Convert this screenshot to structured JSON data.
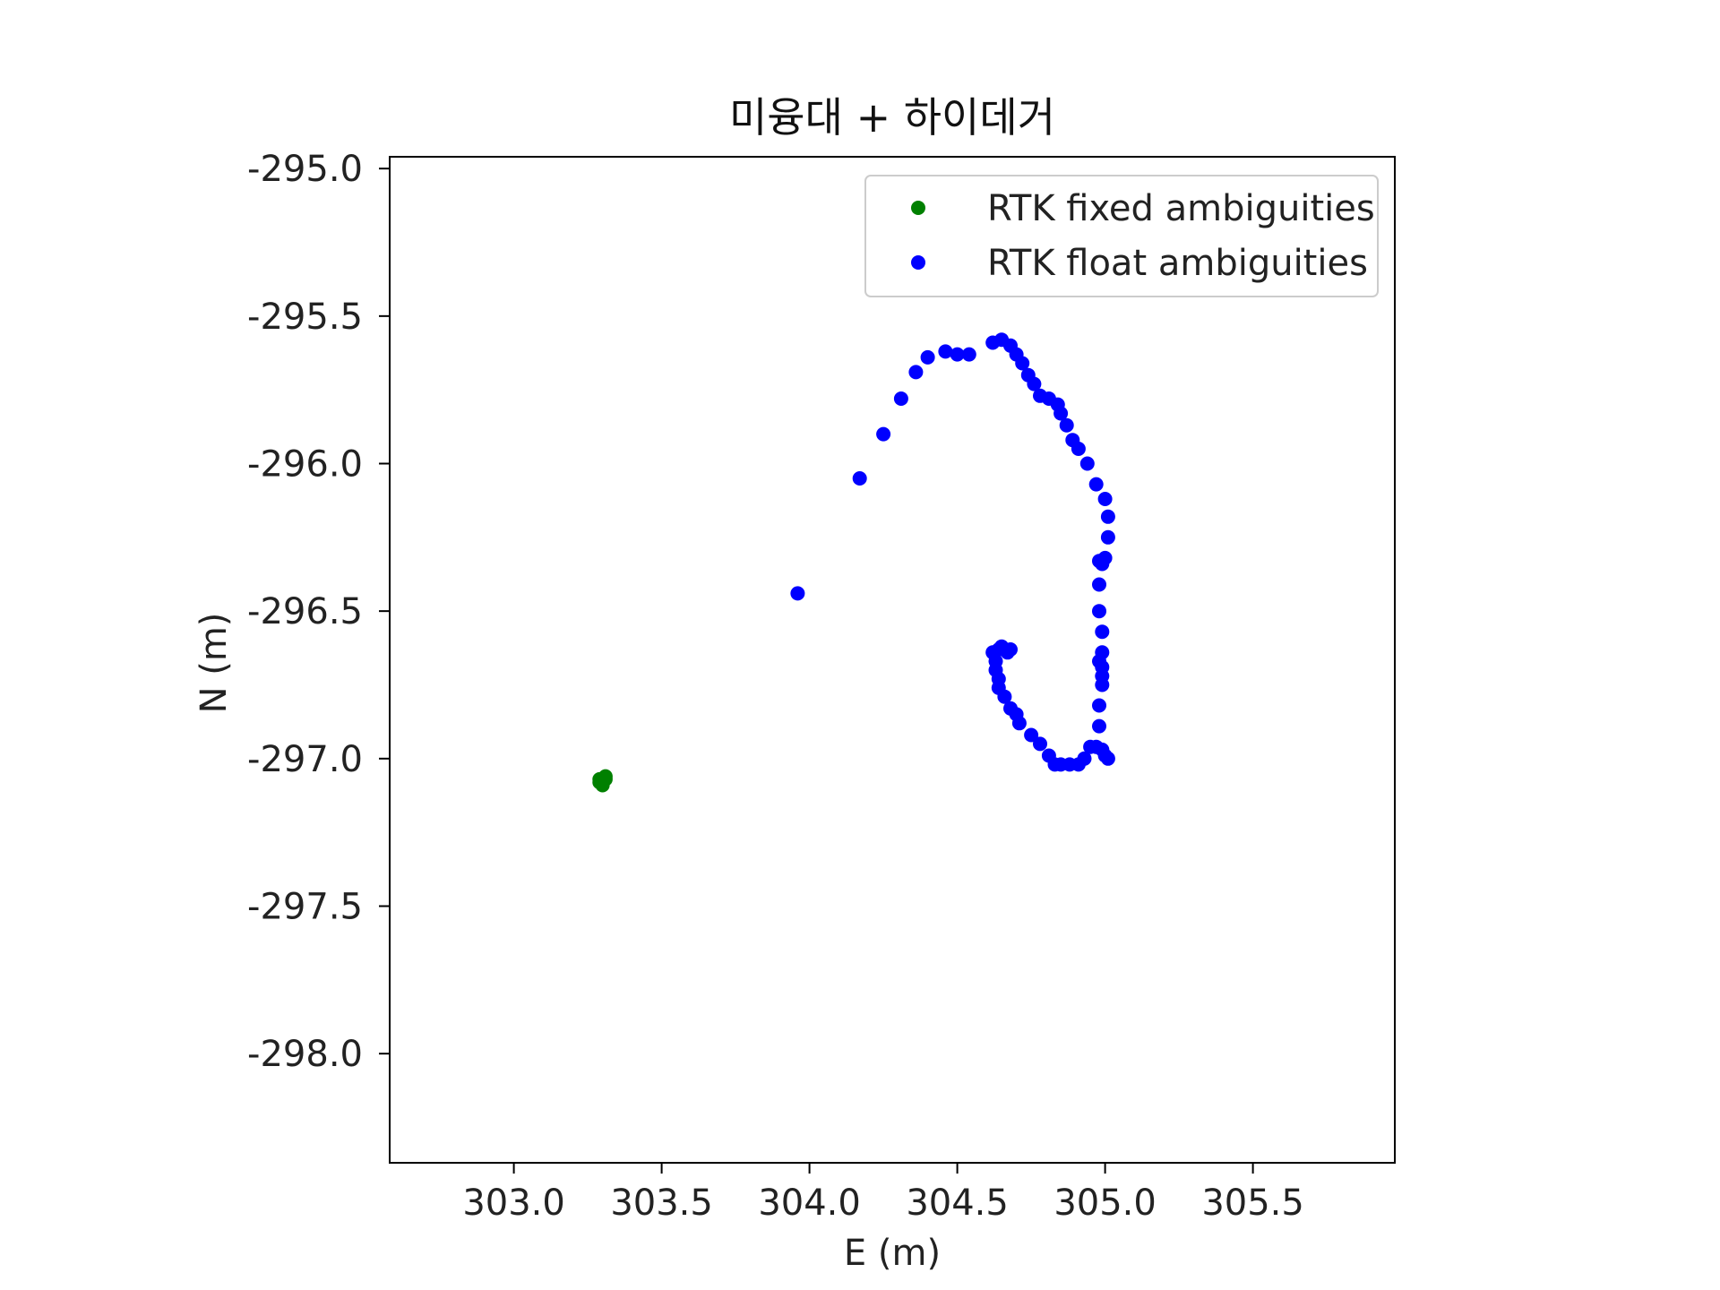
{
  "chart_data": {
    "type": "scatter",
    "title": "미융대 + 하이데거",
    "xlabel": "E (m)",
    "ylabel": "N (m)",
    "xlim": [
      302.58,
      305.98
    ],
    "ylim": [
      -298.37,
      -294.96
    ],
    "x_ticks": [
      "303.0",
      "303.5",
      "304.0",
      "304.5",
      "305.0",
      "305.5"
    ],
    "y_ticks": [
      "-295.0",
      "-295.5",
      "-296.0",
      "-296.5",
      "-297.0",
      "-297.5",
      "-298.0"
    ],
    "grid": false,
    "legend_position": "top-right",
    "series": [
      {
        "name": "RTK fixed ambiguities",
        "color": "#008000",
        "points": [
          [
            303.31,
            -297.06
          ],
          [
            303.3,
            -297.07
          ],
          [
            303.3,
            -297.08
          ],
          [
            303.29,
            -297.08
          ],
          [
            303.3,
            -297.09
          ],
          [
            303.31,
            -297.07
          ],
          [
            303.29,
            -297.07
          ]
        ]
      },
      {
        "name": "RTK float ambiguities",
        "color": "#0000ff",
        "points": [
          [
            303.96,
            -296.44
          ],
          [
            304.17,
            -296.05
          ],
          [
            304.25,
            -295.9
          ],
          [
            304.31,
            -295.78
          ],
          [
            304.36,
            -295.69
          ],
          [
            304.4,
            -295.64
          ],
          [
            304.46,
            -295.62
          ],
          [
            304.5,
            -295.63
          ],
          [
            304.54,
            -295.63
          ],
          [
            304.62,
            -295.59
          ],
          [
            304.65,
            -295.58
          ],
          [
            304.68,
            -295.6
          ],
          [
            304.7,
            -295.63
          ],
          [
            304.72,
            -295.66
          ],
          [
            304.74,
            -295.7
          ],
          [
            304.76,
            -295.73
          ],
          [
            304.78,
            -295.77
          ],
          [
            304.81,
            -295.78
          ],
          [
            304.84,
            -295.8
          ],
          [
            304.85,
            -295.83
          ],
          [
            304.87,
            -295.87
          ],
          [
            304.89,
            -295.92
          ],
          [
            304.91,
            -295.95
          ],
          [
            304.94,
            -296.0
          ],
          [
            304.97,
            -296.07
          ],
          [
            305.0,
            -296.12
          ],
          [
            305.01,
            -296.18
          ],
          [
            305.01,
            -296.25
          ],
          [
            305.0,
            -296.32
          ],
          [
            304.98,
            -296.33
          ],
          [
            304.99,
            -296.34
          ],
          [
            304.98,
            -296.41
          ],
          [
            304.98,
            -296.5
          ],
          [
            304.99,
            -296.57
          ],
          [
            304.99,
            -296.64
          ],
          [
            304.98,
            -296.67
          ],
          [
            304.99,
            -296.69
          ],
          [
            304.99,
            -296.72
          ],
          [
            304.99,
            -296.75
          ],
          [
            304.98,
            -296.82
          ],
          [
            304.98,
            -296.89
          ],
          [
            304.97,
            -296.96
          ],
          [
            304.99,
            -296.97
          ],
          [
            305.0,
            -296.99
          ],
          [
            305.01,
            -297.0
          ],
          [
            304.95,
            -296.96
          ],
          [
            304.93,
            -297.0
          ],
          [
            304.91,
            -297.02
          ],
          [
            304.88,
            -297.02
          ],
          [
            304.85,
            -297.02
          ],
          [
            304.83,
            -297.02
          ],
          [
            304.81,
            -296.99
          ],
          [
            304.78,
            -296.95
          ],
          [
            304.75,
            -296.92
          ],
          [
            304.71,
            -296.88
          ],
          [
            304.7,
            -296.85
          ],
          [
            304.68,
            -296.83
          ],
          [
            304.66,
            -296.79
          ],
          [
            304.64,
            -296.76
          ],
          [
            304.64,
            -296.73
          ],
          [
            304.63,
            -296.7
          ],
          [
            304.63,
            -296.67
          ],
          [
            304.62,
            -296.64
          ],
          [
            304.64,
            -296.63
          ],
          [
            304.65,
            -296.62
          ],
          [
            304.66,
            -296.63
          ],
          [
            304.67,
            -296.64
          ],
          [
            304.68,
            -296.63
          ]
        ]
      }
    ]
  }
}
